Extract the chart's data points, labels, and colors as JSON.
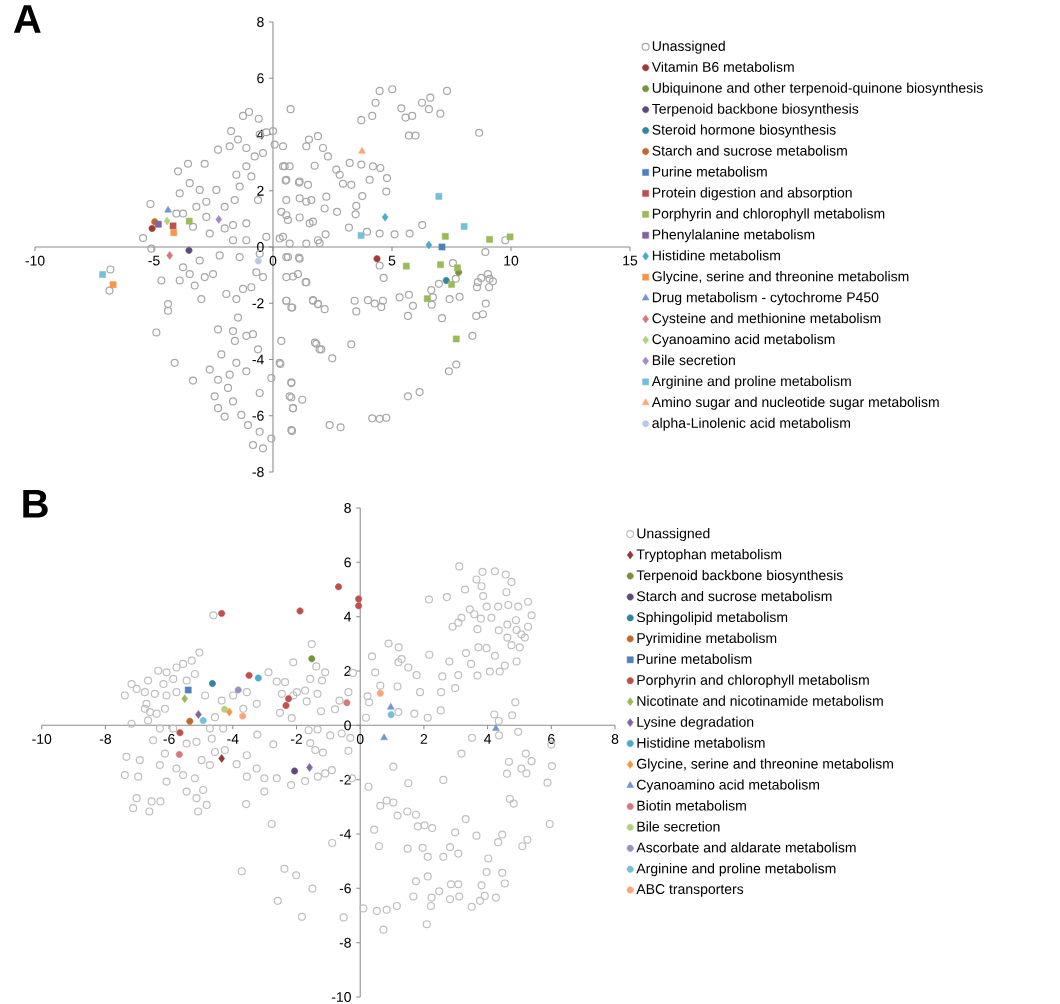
{
  "chart_data": [
    {
      "type": "scatter",
      "title": "A",
      "xlim": [
        -10,
        15
      ],
      "ylim": [
        -8,
        8
      ],
      "xticks": [
        -10,
        -5,
        0,
        5,
        10,
        15
      ],
      "yticks": [
        -8,
        -6,
        -4,
        -2,
        0,
        2,
        4,
        6,
        8
      ],
      "legend": "right",
      "series": [
        {
          "name": "Unassigned",
          "color": "#a6a6a6",
          "marker": "circle",
          "x": [
            -6.83,
            -6.87,
            -5.15,
            -5.46,
            -5.11,
            -4.69,
            -4.41,
            -4.41,
            -4.9,
            -4.13,
            -3.36,
            -3.99,
            -3.57,
            -2.87,
            -3.5,
            -3.08,
            -3.92,
            -2.38,
            -2.03,
            -2.8,
            -3.22,
            -3.78,
            -4.06,
            -2.8,
            -3.36,
            -2.66,
            -2.03,
            -1.68,
            -1.12,
            -1.68,
            -1.12,
            -0.28,
            -0.56,
            -1.4,
            -2.24,
            -3.08,
            -3.78,
            -3.92,
            -3.5,
            -3.29,
            -3.01,
            -2.87,
            -2.52,
            -1.96,
            -1.54,
            -1.26,
            -0.91,
            -0.7,
            -0.42,
            -2.31,
            -1.68,
            -1.47,
            -1.6,
            -1.12,
            -0.84,
            -0.63,
            -2.17,
            -2.66,
            -2.31,
            -1.82,
            -1.54,
            -1.12,
            -2.45,
            -1.89,
            -2.31,
            -1.68,
            -1.33,
            -1.05,
            -0.56,
            -0.84,
            -0.42,
            -0.07,
            -0.56,
            -0.07,
            -2.03,
            -2.31,
            -1.82,
            -1.47,
            -1.12,
            -1.76,
            -1.26,
            -1.01,
            -0.6,
            -0.56,
            -0.28,
            0,
            -0.42,
            -0.77,
            -1.12,
            -1.54,
            -0.91,
            -1.4,
            -0.63,
            -1.61,
            0.07,
            0.42,
            0.49,
            0.7,
            0.56,
            0.35,
            0.56,
            0.42,
            0.63,
            1.12,
            0.56,
            1.05,
            1.4,
            0.56,
            0.77,
            0.35,
            0.28,
            0.77,
            0.7,
            0.84,
            0.77,
            0.74,
            1.12,
            1.51,
            1.89,
            1.4,
            1.68,
            1.89,
            1.68,
            1.89,
            1.76,
            1.96,
            1.4,
            2.1,
            2.31,
            1.75,
            2.66,
            2.8,
            3.22,
            3.71,
            4.2,
            4.51,
            3.71,
            4.17,
            4.31,
            4.48,
            5.01,
            5.39,
            5.57,
            5.85,
            6.26,
            6.61,
            6.55,
            7.03,
            7.31,
            5.71,
            5.99,
            8.66,
            4.06,
            4.79,
            4.76,
            3.75,
            3.29,
            2.94,
            3.5,
            3.47,
            3.19,
            3.95,
            4.48,
            5.11,
            5.74,
            6.27,
            9.76,
            8.92,
            7.56,
            4.48,
            4.65,
            5.32,
            5.71,
            5.88,
            5.67,
            6.65,
            6.72,
            6.67,
            6.97,
            7.42,
            7.84,
            7.1,
            7.68,
            8.54,
            8.82,
            8.94,
            8.38,
            7.39,
            7.7,
            8.61,
            8.75,
            9.03,
            9.1,
            9.24,
            9.08,
            8.57,
            3.43,
            3.5,
            3.99,
            4.27,
            4.62,
            4.55,
            5.67,
            6.16,
            4.17,
            4.48,
            4.76,
            2.38,
            2.84,
            3.29,
            2.49,
            2.03,
            1.82,
            1.23,
            0.77,
            0.84,
            0.8,
            0.31,
            0.77,
            0.56,
            0.81,
            1.68,
            1.89,
            2.17,
            1.37,
            0.84,
            1.09,
            0.56,
            0.28,
            0.7,
            1.4,
            1.96,
            2.21,
            1.54,
            1.12,
            0.63,
            0.56,
            1.12,
            1.61,
            2.24,
            2.17,
            2.69,
            1.47,
            1.09,
            0.53,
            0.42
          ],
          "values": [
            -0.8,
            -1.55,
            1.53,
            0.32,
            -0.06,
            -1.19,
            -2.03,
            -2.27,
            -3.04,
            -4.12,
            -4.75,
            2.69,
            2.96,
            2.96,
            2.27,
            2.03,
            1.91,
            2.03,
            1.43,
            1.61,
            1.43,
            1.19,
            1.19,
            1.07,
            0.72,
            0.48,
            0.66,
            0.78,
            0.84,
            0.24,
            0.24,
            0.36,
            -0.24,
            -0.36,
            -0.3,
            -0.48,
            -0.72,
            -1.19,
            -0.96,
            -1.37,
            -1.85,
            -1.07,
            -0.96,
            -1.67,
            -1.85,
            -1.49,
            -1.43,
            -0.9,
            -1.07,
            -2.93,
            -2.99,
            -2.51,
            -3.34,
            -3.16,
            -3.1,
            -3.64,
            -3.82,
            -4.36,
            -4.72,
            -4.54,
            -4.12,
            -4.42,
            -5.31,
            -5.01,
            -5.73,
            -5.49,
            -5.97,
            -6.33,
            -6.57,
            -7.04,
            -7.16,
            -6.81,
            -5.19,
            -4.66,
            -6.03,
            3.46,
            3.58,
            3.82,
            3.52,
            4.12,
            4.66,
            4.8,
            4.56,
            4.0,
            4.08,
            4.12,
            3.34,
            3.22,
            2.87,
            2.57,
            2.51,
            2.15,
            1.67,
            1.67,
            3.64,
            3.58,
            2.87,
            2.87,
            2.39,
            1.25,
            1.13,
            0.36,
            -0.36,
            -0.42,
            -1.07,
            -0.96,
            -1.25,
            -1.91,
            -2.15,
            -3.34,
            -4.12,
            -4.84,
            -5.31,
            -5.73,
            -6.51,
            4.9,
            2.33,
            3.82,
            3.94,
            1.61,
            0.9,
            0.24,
            -1.91,
            -2.03,
            -3.4,
            -3.64,
            3.58,
            3.52,
            3.22,
            2.89,
            2.75,
            2.57,
            2.99,
            2.93,
            2.87,
            2.81,
            4.51,
            4.66,
            5.13,
            5.55,
            5.61,
            4.93,
            4.6,
            4.66,
            5.13,
            5.31,
            4.9,
            4.74,
            5.55,
            3.96,
            3.96,
            4.06,
            2.39,
            2.45,
            1.97,
            1.81,
            2.21,
            2.25,
            1.46,
            1.16,
            0.69,
            0.54,
            0.48,
            0.45,
            0.48,
            0.78,
            0.24,
            -0.18,
            -0.57,
            -0.66,
            -1.1,
            -1.79,
            -1.7,
            -2.09,
            -2.45,
            -1.53,
            -1.79,
            -2.05,
            -1.31,
            -1.85,
            -1.77,
            -2.53,
            -1.13,
            -2.45,
            -2.39,
            -2.01,
            -3.16,
            -4.42,
            -4.18,
            -1.25,
            -1.1,
            -0.96,
            -1.13,
            -1.22,
            -1.43,
            -1.43,
            -1.91,
            -2.29,
            -1.89,
            -2.01,
            -1.91,
            -2.13,
            -5.31,
            -5.16,
            -6.09,
            -6.11,
            -6.07,
            -6.33,
            -6.41,
            -3.46,
            -3.96,
            -3.64,
            -3.44,
            -5.43,
            -5.35,
            -5.73,
            -6.54,
            -4.16,
            -4.81,
            -1.91,
            -2.15,
            -1.89,
            -2.03,
            -2.21,
            -1.25,
            -1.05,
            -0.38,
            -0.36,
            0.3,
            0.12,
            0.12,
            0.14,
            0.45,
            0.84,
            1.05,
            0.96,
            1.67,
            1.73,
            1.67,
            1.79,
            1.37,
            1.25,
            2.21,
            2.29,
            2.36,
            2.87
          ]
        },
        {
          "name": "Vitamin B6 metabolism",
          "color": "#9e3a38",
          "marker": "circle",
          "x": [
            -5.08,
            4.37
          ],
          "values": [
            0.66,
            -0.42
          ]
        },
        {
          "name": "Ubiquinone and other terpenoid-quinone biosynthesis",
          "color": "#77933c",
          "marker": "circle",
          "x": [
            7.8
          ],
          "values": [
            -0.9
          ]
        },
        {
          "name": "Terpenoid backbone biosynthesis",
          "color": "#5f497a",
          "marker": "circle",
          "x": [
            -3.53
          ],
          "values": [
            -0.12
          ]
        },
        {
          "name": "Steroid hormone biosynthesis",
          "color": "#31859c",
          "marker": "circle",
          "x": [
            7.28
          ],
          "values": [
            -1.19
          ]
        },
        {
          "name": "Starch and sucrose metabolism",
          "color": "#c0692a",
          "marker": "circle",
          "x": [
            -4.97
          ],
          "values": [
            0.9
          ]
        },
        {
          "name": "Purine metabolism",
          "color": "#4f81bd",
          "marker": "square",
          "x": [
            7.1
          ],
          "values": [
            0.0
          ]
        },
        {
          "name": "Protein digestion and absorption",
          "color": "#c0504d",
          "marker": "square",
          "x": [
            -4.2
          ],
          "values": [
            0.75
          ]
        },
        {
          "name": "Porphyrin and chlorophyll metabolism",
          "color": "#9bbb59",
          "marker": "square",
          "x": [
            -3.52,
            7.24,
            9.1,
            9.96,
            5.6,
            7.04,
            7.75,
            7.5,
            6.48,
            7.7
          ],
          "values": [
            0.92,
            0.38,
            0.27,
            0.36,
            -0.68,
            -0.63,
            -0.74,
            -1.33,
            -1.84,
            -3.27
          ]
        },
        {
          "name": "Phenylalanine metabolism",
          "color": "#8064a2",
          "marker": "square",
          "x": [
            -4.82
          ],
          "values": [
            0.81
          ]
        },
        {
          "name": "Histidine metabolism",
          "color": "#4bacc6",
          "marker": "diamond",
          "x": [
            4.71,
            6.55
          ],
          "values": [
            1.06,
            0.07
          ]
        },
        {
          "name": "Glycine, serine and threonine metabolism",
          "color": "#f79646",
          "marker": "square",
          "x": [
            -4.17,
            -6.72
          ],
          "values": [
            0.51,
            -1.34
          ]
        },
        {
          "name": "Drug metabolism - cytochrome P450",
          "color": "#7396cf",
          "marker": "triangle",
          "x": [
            -4.41
          ],
          "values": [
            1.31
          ]
        },
        {
          "name": "Cysteine and methionine metabolism",
          "color": "#d9787a",
          "marker": "diamond",
          "x": [
            -4.34
          ],
          "values": [
            -0.3
          ]
        },
        {
          "name": "Cyanoamino acid metabolism",
          "color": "#b3d27e",
          "marker": "diamond",
          "x": [
            -4.45
          ],
          "values": [
            0.92
          ]
        },
        {
          "name": "Bile secretion",
          "color": "#a18cc6",
          "marker": "diamond",
          "x": [
            -2.28
          ],
          "values": [
            0.98
          ]
        },
        {
          "name": "Arginine and proline metabolism",
          "color": "#74c0d8",
          "marker": "square",
          "x": [
            -7.16,
            6.97,
            8.03,
            3.7
          ],
          "values": [
            -0.98,
            1.8,
            0.73,
            0.41
          ]
        },
        {
          "name": "Amino sugar and nucleotide sugar metabolism",
          "color": "#fba57a",
          "marker": "triangle",
          "x": [
            3.74
          ],
          "values": [
            3.4
          ]
        },
        {
          "name": "alpha-Linolenic acid metabolism",
          "color": "#b9c9e8",
          "marker": "circle",
          "x": [
            -0.62
          ],
          "values": [
            -0.5
          ]
        }
      ]
    },
    {
      "type": "scatter",
      "title": "B",
      "xlim": [
        -10,
        8
      ],
      "ylim": [
        -10,
        8
      ],
      "xticks": [
        -10,
        -8,
        -6,
        -4,
        -2,
        0,
        2,
        4,
        6,
        8
      ],
      "yticks": [
        -10,
        -8,
        -6,
        -4,
        -2,
        0,
        2,
        4,
        6,
        8
      ],
      "legend": "right",
      "series": [
        {
          "name": "Unassigned",
          "color": "#bfbfbf",
          "marker": "circle",
          "x": [
            -7.39,
            -7.18,
            -7.02,
            -6.76,
            -6.66,
            -6.34,
            -6.08,
            -5.77,
            -5.56,
            -5.29,
            -5.05,
            -5.19,
            -5.45,
            -5.87,
            -6.18,
            -6.45,
            -6.71,
            -6.6,
            -6.66,
            -7.18,
            -6.39,
            -6.13,
            -6.08,
            -5.77,
            -4.87,
            -4.35,
            -3.99,
            -3.67,
            -3.25,
            -4.56,
            -4.72,
            -4.3,
            -4.66,
            -5.14,
            -5.45,
            -5.87,
            -6.29,
            -6.5,
            -6.13,
            -6.29,
            -6.08,
            -5.77,
            -5.56,
            -5.19,
            -5.45,
            -5.14,
            -4.93,
            -5.09,
            -4.82,
            -4.98,
            -4.72,
            -4.56,
            -4.25,
            -3.88,
            -3.56,
            -3.56,
            -3.25,
            -3.01,
            -3.01,
            -3.58,
            -2.62,
            -2.73,
            -3.23,
            -3.56,
            -2.88,
            -2.62,
            -2.36,
            -2.46,
            -2.52,
            -2.15,
            -2.1,
            -1.99,
            -1.73,
            -1.68,
            -2.1,
            -1.52,
            -1.38,
            -1.57,
            -1.2,
            -1.1,
            -1.34,
            -1.23,
            -0.79,
            -0.65,
            -0.37,
            -0.23,
            -1.62,
            -1.34,
            -0.94,
            -0.58,
            -0.31,
            -1.57,
            -1.41,
            -1.17,
            -1.33,
            -1.1,
            -1.73,
            -2.17,
            -0.89,
            -0.26,
            -0.37,
            -2.78,
            -0.88,
            -3.72,
            -2.38,
            -2.01,
            -1.5,
            -2.59,
            -1.83,
            -0.52,
            -4.61,
            -6.76,
            -6.97,
            -7.39,
            -7.34,
            -6.92,
            -7.02,
            -7.13,
            -6.62,
            -6.55,
            -6.27,
            3.11,
            3.84,
            4.23,
            4.57,
            4.75,
            3.65,
            3.29,
            3.81,
            3.86,
            4.59,
            5.27,
            5.38,
            4.65,
            4.96,
            3.97,
            4.33,
            4.12,
            3.44,
            3.58,
            3.18,
            3.08,
            3.79,
            2.9,
            3.68,
            4.35,
            4.62,
            4.89,
            5.27,
            4.91,
            5.06,
            5.17,
            4.62,
            4.75,
            5.01,
            3.97,
            3.71,
            3.32,
            3.48,
            4.23,
            4.91,
            4.54,
            4.07,
            4.38,
            3.68,
            2.8,
            3.08,
            2.98,
            2.16,
            2.72,
            2.17,
            2.58,
            2.54,
            2.53,
            1.88,
            2.12,
            1.7,
            1.2,
            1.2,
            1.3,
            1.51,
            1.77,
            0.89,
            1.21,
            0.37,
            0.47,
            1.17,
            0.63,
            0.23,
            0.28,
            0.18,
            4.87,
            4.77,
            4.21,
            4.35,
            4.36,
            4.96,
            3.51,
            3.18,
            4.67,
            5.2,
            5.38,
            5.06,
            5.22,
            4.61,
            4.7,
            4.82,
            6.0,
            6.02,
            5.88,
            5.95,
            2.61,
            1.51,
            1.04,
            0.26,
            0.63,
            0.83,
            1.04,
            1.17,
            1.48,
            1.75,
            1.81,
            2.02,
            2.26,
            3.31,
            2.98,
            3.65,
            4.33,
            4.46,
            5.25,
            5.09,
            0.44,
            0.59,
            1.49,
            1.96,
            2.12,
            2.61,
            2.82,
            3.08,
            4.02,
            3.97,
            4.46,
            4.54,
            3.81,
            3.91,
            3.76,
            3.5,
            4.26,
            3.11,
            2.82,
            2.48,
            2.24,
            2.22,
            1.67,
            1.75,
            2.12,
            2.85,
            3.08,
            1.15,
            0.83,
            0.52,
            0.73,
            2.09,
            0.1
          ],
          "values": [
            1.1,
            1.52,
            1.34,
            1.22,
            1.65,
            2.01,
            1.95,
            2.13,
            2.26,
            2.38,
            2.68,
            1.89,
            1.65,
            1.71,
            1.52,
            1.16,
            0.79,
            0.49,
            0.18,
            0.06,
            0.43,
            0.61,
            1.1,
            1.22,
            1.1,
            0.91,
            1.1,
            0.61,
            0.79,
            0.3,
            -0.12,
            -0.12,
            -0.49,
            -0.61,
            -0.67,
            -0.12,
            -0.12,
            -0.55,
            -1.04,
            -1.46,
            -2.07,
            -1.59,
            -1.83,
            -1.95,
            -2.44,
            -2.68,
            -2.38,
            -3.17,
            -2.93,
            -1.28,
            -1.46,
            -0.98,
            -0.91,
            -1.43,
            -1.1,
            -1.89,
            -1.59,
            -1.95,
            -2.44,
            -2.9,
            -1.95,
            -0.7,
            -0.34,
            1.22,
            1.95,
            1.61,
            1.59,
            1.16,
            0.46,
            0.27,
            1.1,
            1.22,
            1.28,
            0.88,
            2.32,
            2.99,
            2.17,
            1.71,
            1.65,
            1.95,
            1.16,
            0.52,
            0.59,
            0.91,
            1.22,
            1.93,
            -0.18,
            -0.15,
            -0.37,
            -0.3,
            -0.46,
            -0.65,
            -0.91,
            -1.0,
            -1.89,
            -1.77,
            -2.05,
            -2.2,
            -1.65,
            -1.95,
            -0.94,
            -3.63,
            -4.33,
            -5.37,
            -5.28,
            -5.52,
            -6.01,
            -6.46,
            -7.05,
            -7.07,
            4.05,
            0.61,
            -1.89,
            -1.83,
            -1.16,
            -1.28,
            -2.68,
            -3.05,
            -3.17,
            -2.8,
            -2.8,
            5.85,
            5.65,
            5.67,
            5.55,
            5.28,
            5.37,
            5.0,
            5.12,
            4.76,
            4.9,
            4.55,
            4.05,
            4.43,
            4.37,
            4.37,
            4.37,
            3.96,
            4.27,
            4.09,
            3.96,
            3.78,
            3.93,
            3.63,
            3.54,
            3.5,
            3.71,
            3.87,
            3.63,
            3.51,
            3.35,
            3.23,
            3.23,
            2.95,
            2.87,
            2.84,
            2.87,
            2.66,
            2.26,
            2.56,
            2.35,
            2.2,
            1.98,
            1.98,
            1.83,
            2.35,
            1.85,
            1.37,
            4.63,
            4.72,
            2.6,
            1.8,
            1.22,
            0.55,
            1.22,
            0.28,
            0.43,
            0.49,
            2.32,
            2.44,
            2.13,
            1.85,
            3.01,
            2.87,
            2.54,
            1.95,
            1.43,
            1.46,
            1.07,
            0.85,
            0.28,
            0.85,
            0.37,
            0.4,
            0.16,
            -0.37,
            -0.24,
            -0.46,
            -1.04,
            -1.34,
            -1.04,
            -1.32,
            -1.59,
            -1.77,
            -1.78,
            -2.71,
            -2.88,
            -0.71,
            -1.5,
            -2.11,
            -3.63,
            -2.01,
            -2.13,
            -1.52,
            -2.26,
            -2.96,
            -2.77,
            -2.84,
            -3.32,
            -3.17,
            -3.29,
            -3.72,
            -3.68,
            -3.78,
            -3.45,
            -3.94,
            -4.06,
            -4.3,
            -4.02,
            -4.21,
            -4.45,
            -3.84,
            -4.45,
            -4.54,
            -4.51,
            -4.84,
            -4.84,
            -4.48,
            -4.72,
            -4.9,
            -5.4,
            -5.43,
            -5.82,
            -5.89,
            -6.28,
            -6.46,
            -6.68,
            -6.34,
            -6.3,
            -6.4,
            -6.11,
            -6.34,
            -6.65,
            -6.3,
            -5.74,
            -5.56,
            -5.85,
            -5.85,
            -6.65,
            -6.79,
            -6.83,
            -7.52,
            -7.32,
            -6.74
          ]
        },
        {
          "name": "Tryptophan metabolism",
          "color": "#953735",
          "marker": "diamond",
          "x": [
            -4.35
          ],
          "values": [
            -1.22
          ]
        },
        {
          "name": "Terpenoid backbone biosynthesis",
          "color": "#77933c",
          "marker": "circle",
          "x": [
            -1.52
          ],
          "values": [
            2.45
          ]
        },
        {
          "name": "Starch and sucrose metabolism",
          "color": "#5f497a",
          "marker": "circle",
          "x": [
            -2.06
          ],
          "values": [
            -1.68
          ]
        },
        {
          "name": "Sphingolipid metabolism",
          "color": "#31859c",
          "marker": "circle",
          "x": [
            -4.64
          ],
          "values": [
            1.54
          ]
        },
        {
          "name": "Pyrimidine metabolism",
          "color": "#c0692a",
          "marker": "circle",
          "x": [
            -5.35
          ],
          "values": [
            0.15
          ]
        },
        {
          "name": "Purine metabolism",
          "color": "#4f81bd",
          "marker": "square",
          "x": [
            -5.4
          ],
          "values": [
            1.3
          ]
        },
        {
          "name": "Porphyrin and chlorophyll metabolism",
          "color": "#c0504d",
          "marker": "circle",
          "x": [
            -5.66,
            -4.35,
            -3.49,
            -1.89,
            -2.25,
            -2.33,
            -0.68,
            -0.05,
            -0.05
          ],
          "values": [
            -0.27,
            4.12,
            1.84,
            4.21,
            0.98,
            0.73,
            5.1,
            4.65,
            4.4
          ]
        },
        {
          "name": "Nicotinate and nicotinamide metabolism",
          "color": "#9bbb59",
          "marker": "diamond",
          "x": [
            -5.51
          ],
          "values": [
            0.98
          ]
        },
        {
          "name": "Lysine degradation",
          "color": "#8064a2",
          "marker": "diamond",
          "x": [
            -5.08,
            -1.59
          ],
          "values": [
            0.4,
            -1.55
          ]
        },
        {
          "name": "Histidine metabolism",
          "color": "#4bacc6",
          "marker": "circle",
          "x": [
            -3.2
          ],
          "values": [
            1.74
          ]
        },
        {
          "name": "Glycine, serine and threonine metabolism",
          "color": "#f79646",
          "marker": "diamond",
          "x": [
            -4.11
          ],
          "values": [
            0.49
          ]
        },
        {
          "name": "Cyanoamino acid metabolism",
          "color": "#7396cf",
          "marker": "triangle",
          "x": [
            0.96,
            0.75,
            4.26
          ],
          "values": [
            0.67,
            -0.46,
            -0.12
          ]
        },
        {
          "name": "Biotin metabolism",
          "color": "#d9787a",
          "marker": "circle",
          "x": [
            -5.68,
            -0.42
          ],
          "values": [
            -1.07,
            0.83
          ]
        },
        {
          "name": "Bile secretion",
          "color": "#b3d27e",
          "marker": "circle",
          "x": [
            -4.26
          ],
          "values": [
            0.59
          ]
        },
        {
          "name": "Ascorbate and aldarate metabolism",
          "color": "#a18cc6",
          "marker": "circle",
          "x": [
            -3.83
          ],
          "values": [
            1.3
          ]
        },
        {
          "name": "Arginine and proline metabolism",
          "color": "#74c0d8",
          "marker": "circle",
          "x": [
            -4.93,
            0.97
          ],
          "values": [
            0.18,
            0.39
          ]
        },
        {
          "name": "ABC transporters",
          "color": "#fba57a",
          "marker": "circle",
          "x": [
            -3.69,
            0.63
          ],
          "values": [
            0.34,
            1.18
          ]
        }
      ]
    }
  ]
}
